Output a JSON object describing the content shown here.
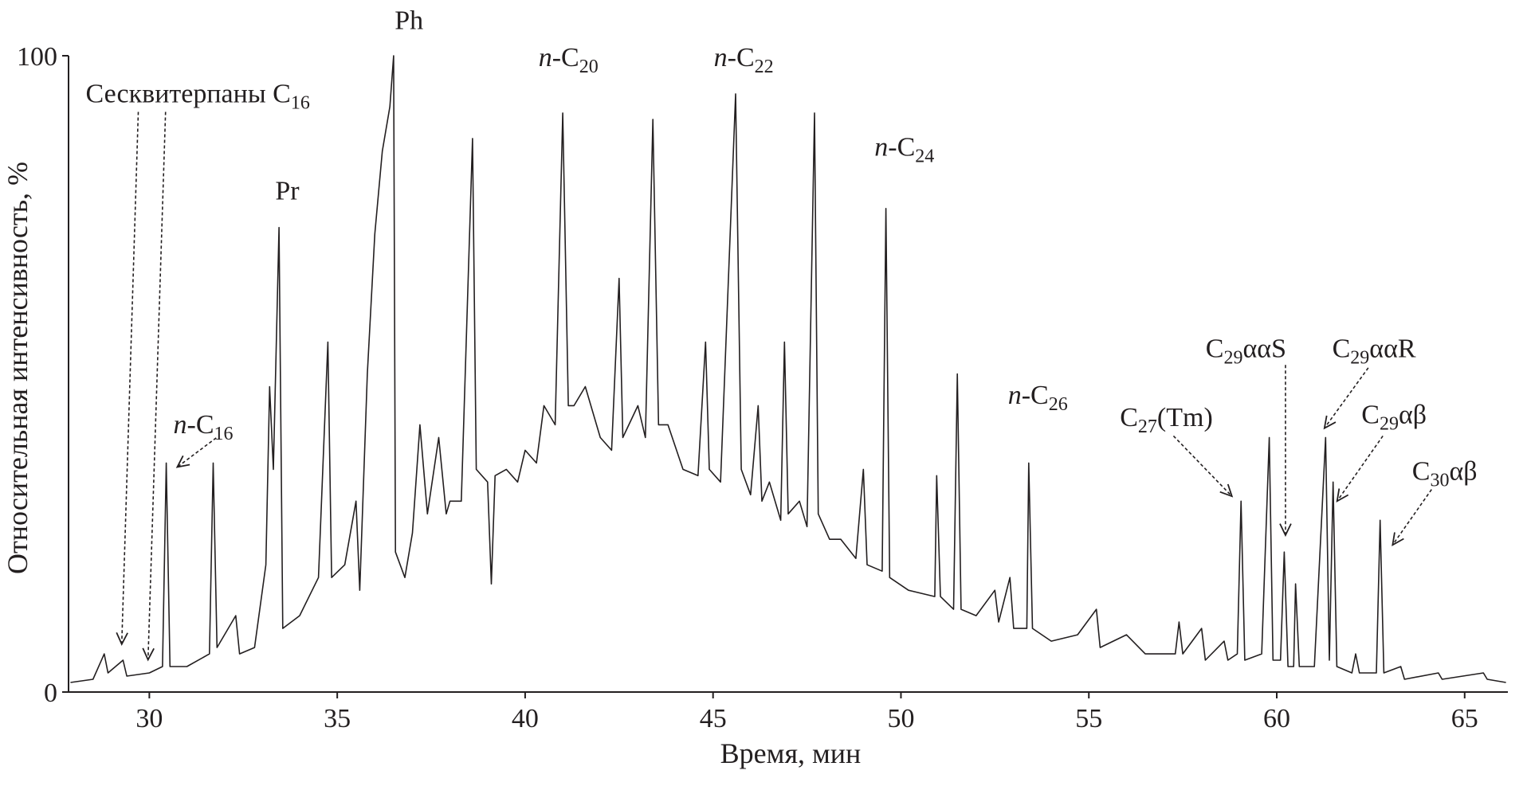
{
  "chart_data": {
    "type": "line",
    "x_label": "Время, мин",
    "y_label": "Относительная интенсивность, %",
    "color": "#231f20",
    "xlim": [
      27.85,
      66.15
    ],
    "xticks": [
      30,
      35,
      40,
      45,
      50,
      55,
      60,
      65
    ],
    "ylim": [
      0,
      100
    ],
    "yticks": [
      0,
      100
    ],
    "grid": false,
    "x": [
      27.9,
      28.5,
      28.8,
      28.9,
      29.3,
      29.4,
      30.0,
      30.35,
      30.45,
      30.55,
      31.0,
      31.6,
      31.7,
      31.8,
      32.3,
      32.4,
      32.8,
      33.1,
      33.2,
      33.3,
      33.45,
      33.55,
      34.0,
      34.5,
      34.75,
      34.85,
      35.2,
      35.5,
      35.6,
      35.8,
      36.0,
      36.2,
      36.4,
      36.5,
      36.55,
      36.8,
      37.0,
      37.2,
      37.4,
      37.7,
      37.9,
      38.0,
      38.3,
      38.6,
      38.7,
      39.0,
      39.1,
      39.2,
      39.5,
      39.8,
      40.0,
      40.3,
      40.5,
      40.8,
      41.0,
      41.15,
      41.3,
      41.6,
      42.0,
      42.3,
      42.5,
      42.6,
      43.0,
      43.2,
      43.4,
      43.55,
      43.8,
      44.2,
      44.6,
      44.8,
      44.9,
      45.2,
      45.6,
      45.75,
      46.0,
      46.2,
      46.3,
      46.5,
      46.8,
      46.9,
      47.0,
      47.3,
      47.5,
      47.7,
      47.8,
      48.1,
      48.4,
      48.8,
      49.0,
      49.1,
      49.5,
      49.6,
      49.7,
      50.2,
      50.9,
      50.95,
      51.05,
      51.4,
      51.5,
      51.6,
      52.0,
      52.5,
      52.6,
      52.9,
      53.0,
      53.35,
      53.4,
      53.5,
      54.0,
      54.7,
      55.2,
      55.3,
      56.0,
      56.5,
      57.3,
      57.4,
      57.5,
      58.0,
      58.1,
      58.6,
      58.7,
      58.95,
      59.05,
      59.15,
      59.6,
      59.8,
      59.9,
      60.1,
      60.2,
      60.3,
      60.45,
      60.5,
      60.6,
      61.0,
      61.3,
      61.4,
      61.5,
      61.6,
      62.0,
      62.1,
      62.2,
      62.65,
      62.75,
      62.85,
      63.3,
      63.4,
      64.3,
      64.4,
      65.5,
      65.6,
      66.1
    ],
    "values": [
      1.5,
      2,
      6,
      3,
      5,
      2.5,
      3,
      4,
      36,
      4,
      4,
      6,
      36,
      7,
      12,
      6,
      7,
      20,
      48,
      35,
      73,
      10,
      12,
      18,
      55,
      18,
      20,
      30,
      16,
      50,
      72,
      85,
      92,
      100,
      22,
      18,
      25,
      42,
      28,
      40,
      28,
      30,
      30,
      87,
      35,
      33,
      17,
      34,
      35,
      33,
      38,
      36,
      45,
      42,
      91,
      45,
      45,
      48,
      40,
      38,
      65,
      40,
      45,
      40,
      90,
      42,
      42,
      35,
      34,
      55,
      35,
      33,
      94,
      35,
      31,
      45,
      30,
      33,
      27,
      55,
      28,
      30,
      26,
      91,
      28,
      24,
      24,
      21,
      35,
      20,
      19,
      76,
      18,
      16,
      15,
      34,
      15,
      13,
      50,
      13,
      12,
      16,
      11,
      18,
      10,
      10,
      36,
      10,
      8,
      9,
      13,
      7,
      9,
      6,
      6,
      11,
      6,
      10,
      5,
      8,
      5,
      6,
      30,
      5,
      6,
      40,
      5,
      5,
      22,
      4,
      4,
      17,
      4,
      4,
      40,
      5,
      33,
      4,
      3,
      6,
      3,
      3,
      27,
      3,
      4,
      2,
      3,
      2,
      3,
      2,
      1.5
    ],
    "annotations": [
      {
        "parts": [
          {
            "text": "Ph"
          }
        ]
      },
      {
        "parts": [
          {
            "text": "Pr"
          }
        ]
      },
      {
        "parts": [
          {
            "text": "Сесквитерпаны C"
          },
          {
            "text": "16",
            "style": "sub"
          }
        ]
      },
      {
        "parts": [
          {
            "text": "n",
            "style": "italic"
          },
          {
            "text": "-C"
          },
          {
            "text": "16",
            "style": "sub"
          }
        ]
      },
      {
        "parts": [
          {
            "text": "n",
            "style": "italic"
          },
          {
            "text": "-C"
          },
          {
            "text": "20",
            "style": "sub"
          }
        ]
      },
      {
        "parts": [
          {
            "text": "n",
            "style": "italic"
          },
          {
            "text": "-C"
          },
          {
            "text": "22",
            "style": "sub"
          }
        ]
      },
      {
        "parts": [
          {
            "text": "n",
            "style": "italic"
          },
          {
            "text": "-C"
          },
          {
            "text": "24",
            "style": "sub"
          }
        ]
      },
      {
        "parts": [
          {
            "text": "n",
            "style": "italic"
          },
          {
            "text": "-C"
          },
          {
            "text": "26",
            "style": "sub"
          }
        ]
      },
      {
        "parts": [
          {
            "text": "C"
          },
          {
            "text": "27",
            "style": "sub"
          },
          {
            "text": "(Tm)"
          }
        ]
      },
      {
        "parts": [
          {
            "text": "C"
          },
          {
            "text": "29",
            "style": "sub"
          },
          {
            "text": "ααS"
          }
        ]
      },
      {
        "parts": [
          {
            "text": "C"
          },
          {
            "text": "29",
            "style": "sub"
          },
          {
            "text": "ααR"
          }
        ]
      },
      {
        "parts": [
          {
            "text": "C"
          },
          {
            "text": "29",
            "style": "sub"
          },
          {
            "text": "αβ"
          }
        ]
      },
      {
        "parts": [
          {
            "text": "C"
          },
          {
            "text": "30",
            "style": "sub"
          },
          {
            "text": "αβ"
          }
        ]
      }
    ]
  }
}
